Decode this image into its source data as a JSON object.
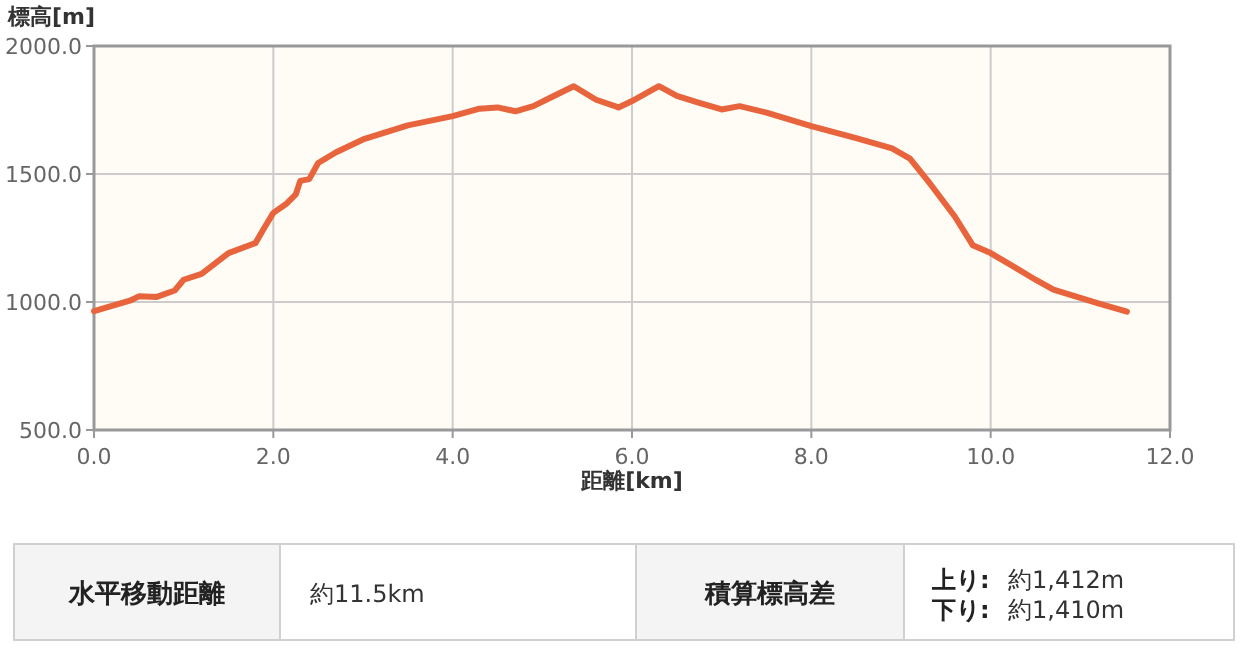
{
  "chart_data": {
    "type": "line",
    "xlabel": "距離[km]",
    "ylabel": "標高[m]",
    "x": [
      0,
      0.2,
      0.4,
      0.5,
      0.7,
      0.9,
      1.0,
      1.2,
      1.5,
      1.8,
      1.9,
      2.0,
      2.15,
      2.25,
      2.3,
      2.4,
      2.5,
      2.7,
      3.0,
      3.5,
      4.0,
      4.3,
      4.5,
      4.7,
      4.9,
      5.1,
      5.35,
      5.6,
      5.85,
      6.0,
      6.3,
      6.5,
      6.75,
      7.0,
      7.2,
      7.5,
      8.0,
      8.5,
      8.9,
      9.1,
      9.3,
      9.35,
      9.6,
      9.8,
      10.0,
      10.2,
      10.5,
      10.7,
      11.0,
      11.2,
      11.52
    ],
    "series": [
      {
        "color": "#e8643c",
        "values": [
          964,
          985,
          1005,
          1022,
          1020,
          1045,
          1087,
          1110,
          1191,
          1230,
          1290,
          1348,
          1385,
          1420,
          1473,
          1480,
          1543,
          1585,
          1635,
          1690,
          1726,
          1755,
          1760,
          1745,
          1765,
          1800,
          1843,
          1790,
          1760,
          1785,
          1843,
          1805,
          1778,
          1752,
          1765,
          1740,
          1687,
          1640,
          1600,
          1560,
          1473,
          1450,
          1334,
          1222,
          1191,
          1150,
          1087,
          1048,
          1016,
          995,
          962
        ]
      }
    ],
    "xlim": [
      0,
      12
    ],
    "ylim": [
      500,
      2000
    ],
    "xticks": [
      {
        "value": 0,
        "label": "0.0"
      },
      {
        "value": 2,
        "label": "2.0"
      },
      {
        "value": 4,
        "label": "4.0"
      },
      {
        "value": 6,
        "label": "6.0"
      },
      {
        "value": 8,
        "label": "8.0"
      },
      {
        "value": 10,
        "label": "10.0"
      },
      {
        "value": 12,
        "label": "12.0"
      }
    ],
    "yticks": [
      {
        "value": 500,
        "label": "500.0"
      },
      {
        "value": 1000,
        "label": "1000.0"
      },
      {
        "value": 1500,
        "label": "1500.0"
      },
      {
        "value": 2000,
        "label": "2000.0"
      }
    ],
    "grid": true,
    "marker": "none",
    "line_style": "solid",
    "annotations": [
      "水平移動距離",
      "約11.5km",
      "積算標高差",
      "上り:",
      "約1,412m",
      "下り:",
      "約1,410m"
    ]
  }
}
